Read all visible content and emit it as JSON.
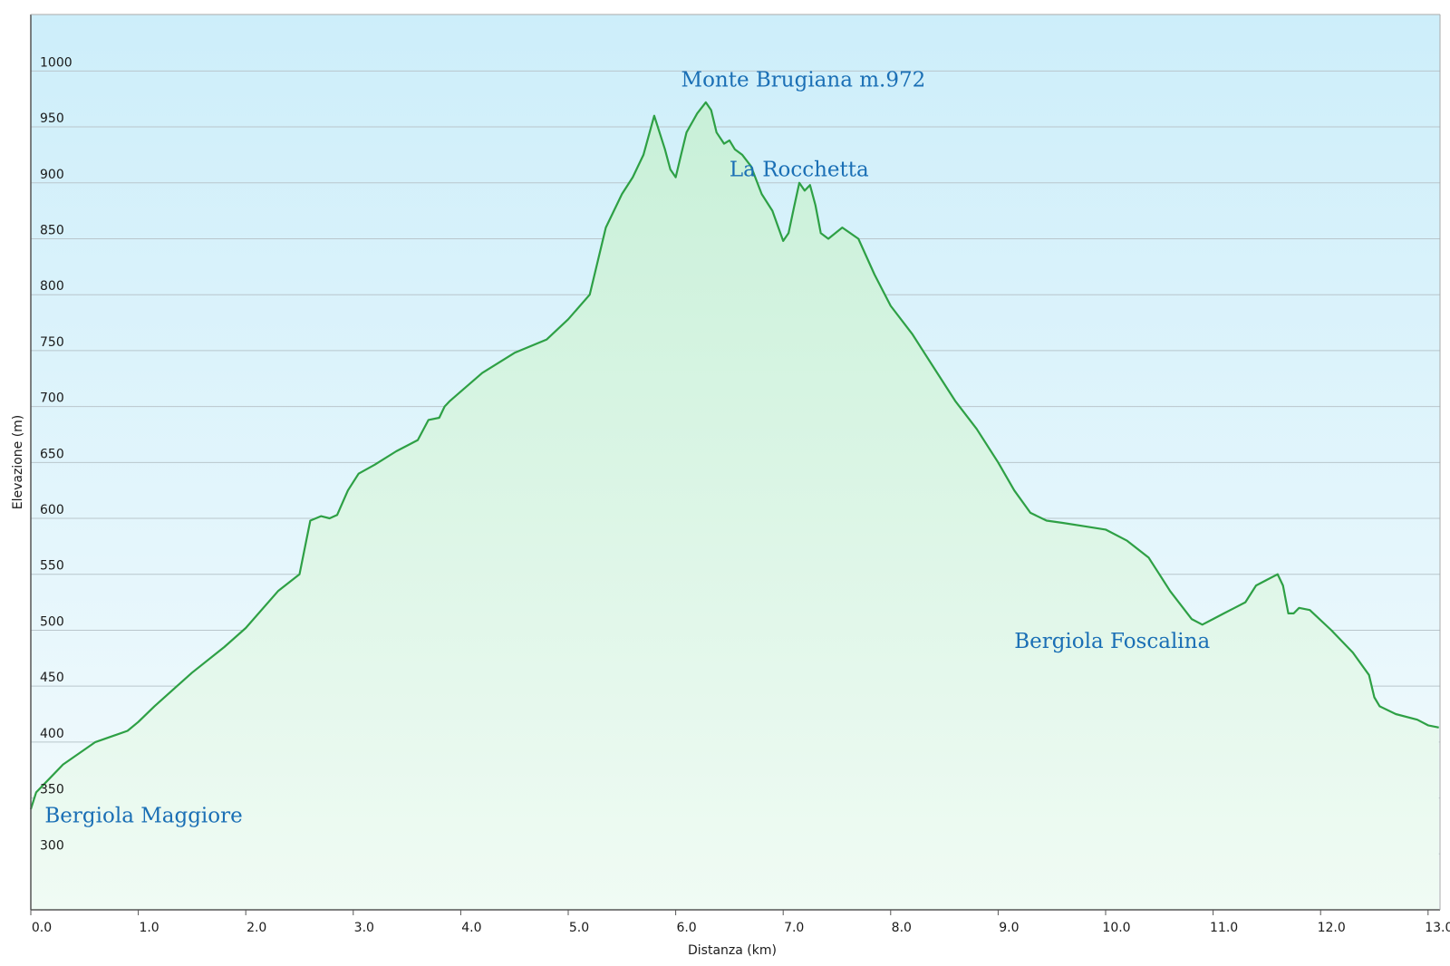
{
  "chart_data": {
    "type": "area",
    "title": "",
    "xlabel": "Distanza  (km)",
    "ylabel": "Elevazione (m)",
    "xlim": [
      0,
      13.1
    ],
    "ylim": [
      250,
      1050
    ],
    "x_ticks": [
      "0.0",
      "1.0",
      "2.0",
      "3.0",
      "4.0",
      "5.0",
      "6.0",
      "7.0",
      "8.0",
      "9.0",
      "10.0",
      "11.0",
      "12.0",
      "13.0"
    ],
    "y_ticks": [
      "300",
      "350",
      "400",
      "450",
      "500",
      "550",
      "600",
      "650",
      "700",
      "750",
      "800",
      "850",
      "900",
      "950",
      "1000"
    ],
    "grid": "horizontal",
    "colors": {
      "line": "#2ea045",
      "sky_top": "#cdeefa",
      "fill_bottom": "#eafaf0"
    },
    "annotations": [
      {
        "text": "Monte Brugiana m.972",
        "x": 6.05,
        "y": 986
      },
      {
        "text": "La Rocchetta",
        "x": 6.5,
        "y": 906
      },
      {
        "text": "Bergiola Foscalina",
        "x": 9.15,
        "y": 484
      },
      {
        "text": "Bergiola Maggiore",
        "x": 0.13,
        "y": 328
      }
    ],
    "series": [
      {
        "x": [
          0,
          0.05,
          0.1,
          0.3,
          0.6,
          0.9,
          1.0,
          1.15,
          1.5,
          1.8,
          2.0,
          2.3,
          2.5,
          2.6,
          2.7,
          2.78,
          2.85,
          2.95,
          3.05,
          3.2,
          3.4,
          3.6,
          3.7,
          3.8,
          3.85,
          3.9,
          4.2,
          4.5,
          4.8,
          5.0,
          5.2,
          5.35,
          5.5,
          5.6,
          5.7,
          5.8,
          5.85,
          5.9,
          5.95,
          6.0,
          6.05,
          6.1,
          6.2,
          6.28,
          6.33,
          6.38,
          6.45,
          6.5,
          6.55,
          6.62,
          6.7,
          6.8,
          6.9,
          7.0,
          7.05,
          7.1,
          7.15,
          7.2,
          7.25,
          7.3,
          7.35,
          7.42,
          7.55,
          7.7,
          7.85,
          8.0,
          8.2,
          8.4,
          8.6,
          8.8,
          9.0,
          9.15,
          9.3,
          9.45,
          9.6,
          9.8,
          10.0,
          10.2,
          10.4,
          10.5,
          10.6,
          10.8,
          10.9,
          11.0,
          11.1,
          11.2,
          11.3,
          11.4,
          11.5,
          11.6,
          11.65,
          11.7,
          11.75,
          11.8,
          11.9,
          12.1,
          12.3,
          12.45,
          12.5,
          12.55,
          12.7,
          12.9,
          13.0,
          13.1
        ],
        "y": [
          340,
          355,
          360,
          380,
          400,
          410,
          418,
          432,
          462,
          485,
          502,
          535,
          550,
          598,
          602,
          600,
          603,
          625,
          640,
          648,
          660,
          670,
          688,
          690,
          700,
          705,
          730,
          748,
          760,
          778,
          800,
          860,
          890,
          905,
          925,
          960,
          945,
          930,
          912,
          905,
          925,
          945,
          962,
          972,
          965,
          945,
          935,
          938,
          930,
          925,
          915,
          890,
          875,
          848,
          855,
          878,
          900,
          893,
          898,
          880,
          855,
          850,
          860,
          850,
          818,
          790,
          765,
          735,
          705,
          680,
          650,
          625,
          605,
          598,
          596,
          593,
          590,
          580,
          565,
          550,
          535,
          510,
          505,
          510,
          515,
          520,
          525,
          540,
          545,
          550,
          540,
          515,
          515,
          520,
          518,
          500,
          480,
          460,
          440,
          432,
          425,
          420,
          415,
          413
        ]
      }
    ]
  }
}
